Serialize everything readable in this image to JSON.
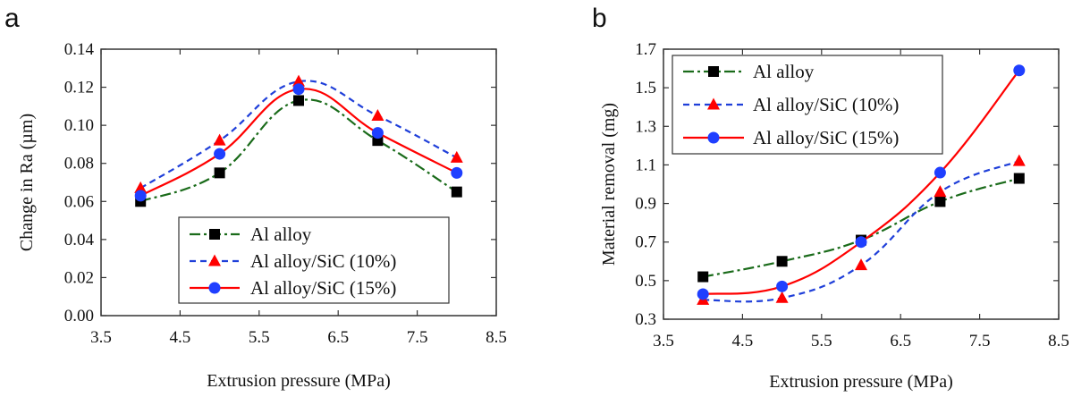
{
  "chart_data": [
    {
      "type": "line",
      "panel": "a",
      "xlabel": "Extrusion pressure (MPa)",
      "ylabel": "Change in Ra (µm)",
      "xlim": [
        3.5,
        8.5
      ],
      "ylim": [
        0.0,
        0.14
      ],
      "xticks": [
        "3.5",
        "4.5",
        "5.5",
        "6.5",
        "7.5",
        "8.5"
      ],
      "yticks": [
        "0.00",
        "0.02",
        "0.04",
        "0.06",
        "0.08",
        "0.10",
        "0.12",
        "0.14"
      ],
      "legend_position": "bottom-right",
      "x": [
        4,
        5,
        6,
        7,
        8
      ],
      "series": [
        {
          "name": "Al alloy",
          "values": [
            0.06,
            0.075,
            0.113,
            0.092,
            0.065
          ],
          "color": "#1a6b1a",
          "marker": "square",
          "marker_color": "#000000",
          "line": "dashdot"
        },
        {
          "name": "Al alloy/SiC (10%)",
          "values": [
            0.067,
            0.092,
            0.123,
            0.105,
            0.083
          ],
          "color": "#1f3fd9",
          "marker": "triangle",
          "marker_color": "#ff0000",
          "line": "dashed"
        },
        {
          "name": "Al alloy/SiC (15%)",
          "values": [
            0.063,
            0.085,
            0.119,
            0.096,
            0.075
          ],
          "color": "#ff0000",
          "marker": "circle",
          "marker_color": "#1f3fff",
          "line": "solid"
        }
      ]
    },
    {
      "type": "line",
      "panel": "b",
      "xlabel": "Extrusion pressure (MPa)",
      "ylabel": "Material removal (mg)",
      "xlim": [
        3.5,
        8.5
      ],
      "ylim": [
        0.3,
        1.7
      ],
      "xticks": [
        "3.5",
        "4.5",
        "5.5",
        "6.5",
        "7.5",
        "8.5"
      ],
      "yticks": [
        "0.3",
        "0.5",
        "0.7",
        "0.9",
        "1.1",
        "1.3",
        "1.5",
        "1.7"
      ],
      "legend_position": "top-left",
      "x": [
        4,
        5,
        6,
        7,
        8
      ],
      "series": [
        {
          "name": "Al alloy",
          "values": [
            0.52,
            0.6,
            0.71,
            0.91,
            1.03
          ],
          "color": "#1a6b1a",
          "marker": "square",
          "marker_color": "#000000",
          "line": "dashdot"
        },
        {
          "name": "Al alloy/SiC (10%)",
          "values": [
            0.4,
            0.41,
            0.58,
            0.96,
            1.12
          ],
          "color": "#1f3fd9",
          "marker": "triangle",
          "marker_color": "#ff0000",
          "line": "dashed"
        },
        {
          "name": "Al alloy/SiC (15%)",
          "values": [
            0.43,
            0.47,
            0.7,
            1.06,
            1.59
          ],
          "color": "#ff0000",
          "marker": "circle",
          "marker_color": "#1f3fff",
          "line": "solid"
        }
      ]
    }
  ]
}
